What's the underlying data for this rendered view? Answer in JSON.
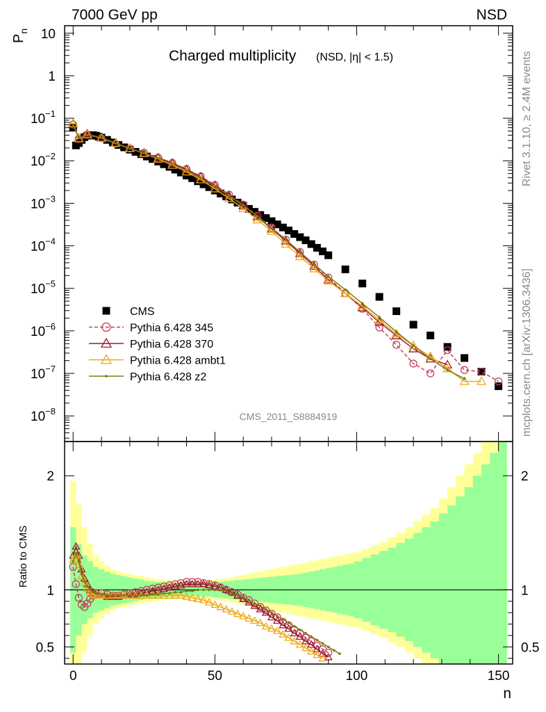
{
  "header": {
    "left": "7000 GeV pp",
    "right": "NSD"
  },
  "side_labels": {
    "rivet": "Rivet 3.1.10, ≥ 2.4M events",
    "mcplots": "mcplots.cern.ch [arXiv:1306.3436]"
  },
  "chart_data": [
    {
      "type": "scatter",
      "panel": "main",
      "title": "Charged multiplicity",
      "title_sub": "(NSD, |η| < 1.5)",
      "ylabel_main": "P",
      "ylabel_sub": "n",
      "yscale": "log",
      "ylim": [
        2.5e-09,
        15
      ],
      "xlim": [
        -3,
        155
      ],
      "analysis_id": "CMS_2011_S8884919",
      "y_ticklabels": [
        {
          "base": "10",
          "exp": "",
          "value": 10
        },
        {
          "base": "1",
          "exp": "",
          "value": 1
        },
        {
          "base": "10",
          "exp": "−1",
          "value": 0.1
        },
        {
          "base": "10",
          "exp": "−2",
          "value": 0.01
        },
        {
          "base": "10",
          "exp": "−3",
          "value": 0.001
        },
        {
          "base": "10",
          "exp": "−4",
          "value": 0.0001
        },
        {
          "base": "10",
          "exp": "−5",
          "value": 1e-05
        },
        {
          "base": "10",
          "exp": "−6",
          "value": 1e-06
        },
        {
          "base": "10",
          "exp": "−7",
          "value": 1e-07
        },
        {
          "base": "10",
          "exp": "−8",
          "value": 1e-08
        }
      ],
      "legend": {
        "placement": "bottom-left",
        "entries": [
          {
            "label": "CMS",
            "color": "#000000",
            "marker": "square"
          },
          {
            "label": "Pythia 6.428 345",
            "color": "#c0405a",
            "marker": "circle-open",
            "dashed": true
          },
          {
            "label": "Pythia 6.428 370",
            "color": "#9b1b30",
            "marker": "triangle-open"
          },
          {
            "label": "Pythia 6.428 ambt1",
            "color": "#f0a818",
            "marker": "triangle-open"
          },
          {
            "label": "Pythia 6.428 z2",
            "color": "#7a7a10",
            "marker": "dot"
          }
        ]
      },
      "series": [
        {
          "name": "CMS",
          "x": [
            0,
            1,
            2,
            3,
            4,
            5,
            6,
            7,
            8,
            9,
            10,
            12,
            14,
            16,
            18,
            20,
            22,
            24,
            26,
            28,
            30,
            32,
            34,
            36,
            38,
            40,
            42,
            44,
            46,
            48,
            50,
            52,
            54,
            56,
            58,
            60,
            62,
            64,
            66,
            68,
            70,
            72,
            74,
            76,
            78,
            80,
            82,
            84,
            86,
            88,
            90,
            96,
            102,
            108,
            114,
            120,
            126,
            132,
            138,
            144,
            150
          ],
          "y": [
            0.06,
            0.023,
            0.026,
            0.031,
            0.036,
            0.039,
            0.04,
            0.04,
            0.039,
            0.037,
            0.035,
            0.031,
            0.027,
            0.0235,
            0.0207,
            0.0183,
            0.0162,
            0.0143,
            0.0126,
            0.011,
            0.0096,
            0.0083,
            0.0072,
            0.0062,
            0.0053,
            0.0045,
            0.0039,
            0.0033,
            0.0028,
            0.0024,
            0.002,
            0.0017,
            0.00145,
            0.00123,
            0.00104,
            0.00088,
            0.00074,
            0.00063,
            0.00053,
            0.00045,
            0.00038,
            0.00032,
            0.00027,
            0.00023,
            0.00019,
            0.00016,
            0.000135,
            0.00011,
            9e-05,
            7.4e-05,
            6e-05,
            2.8e-05,
            1.3e-05,
            6.3e-06,
            2.9e-06,
            1.4e-06,
            7.8e-07,
            4.2e-07,
            2.3e-07,
            1.1e-07,
            5e-08
          ]
        },
        {
          "name": "Pythia 6.428 345",
          "x": [
            0,
            2,
            5,
            10,
            15,
            20,
            25,
            30,
            35,
            40,
            45,
            50,
            55,
            60,
            65,
            70,
            75,
            80,
            85,
            90,
            96,
            102,
            108,
            114,
            120,
            126,
            132,
            138,
            144,
            150
          ],
          "y": [
            0.071,
            0.033,
            0.041,
            0.034,
            0.025,
            0.0195,
            0.0154,
            0.0119,
            0.0089,
            0.0064,
            0.0043,
            0.0027,
            0.0016,
            0.00093,
            0.00051,
            0.00027,
            0.00014,
            7.2e-05,
            3.6e-05,
            1.8e-05,
            7.7e-06,
            3.3e-06,
            1.2e-06,
            4.7e-07,
            1.7e-07,
            1e-07,
            3.5e-07,
            1.2e-07,
            1.1e-07,
            6.5e-08
          ]
        },
        {
          "name": "Pythia 6.428 370",
          "x": [
            0,
            2,
            5,
            10,
            15,
            20,
            25,
            30,
            35,
            40,
            45,
            50,
            55,
            60,
            65,
            70,
            75,
            80,
            85,
            90,
            96,
            102,
            108,
            114,
            120,
            126,
            132
          ],
          "y": [
            0.075,
            0.034,
            0.043,
            0.035,
            0.026,
            0.0198,
            0.0153,
            0.0118,
            0.0088,
            0.0063,
            0.0042,
            0.0026,
            0.0015,
            0.00088,
            0.00048,
            0.00025,
            0.00013,
            6.6e-05,
            3.3e-05,
            1.6e-05,
            7.6e-06,
            3.5e-06,
            1.6e-06,
            7.7e-07,
            3.8e-07,
            2.2e-07,
            1.6e-07
          ]
        },
        {
          "name": "Pythia 6.428 ambt1",
          "x": [
            0,
            2,
            5,
            10,
            15,
            20,
            25,
            30,
            35,
            40,
            45,
            50,
            55,
            60,
            65,
            70,
            75,
            80,
            85,
            90,
            96,
            102,
            108,
            114,
            120,
            126,
            132,
            138,
            144
          ],
          "y": [
            0.075,
            0.033,
            0.041,
            0.034,
            0.026,
            0.0196,
            0.0149,
            0.011,
            0.0079,
            0.0055,
            0.0036,
            0.0022,
            0.0013,
            0.00075,
            0.00041,
            0.00022,
            0.00011,
            5.6e-05,
            2.9e-05,
            1.5e-05,
            7.6e-06,
            3.8e-06,
            1.8e-06,
            8.5e-07,
            4.5e-07,
            2.5e-07,
            1.3e-07,
            6.5e-08,
            6.5e-08
          ]
        },
        {
          "name": "Pythia 6.428 z2",
          "x": [
            0,
            2,
            5,
            10,
            15,
            20,
            25,
            30,
            35,
            40,
            45,
            50,
            55,
            60,
            65,
            70,
            75,
            80,
            85,
            90,
            96,
            102,
            108,
            114,
            120,
            126,
            132,
            138
          ],
          "y": [
            0.072,
            0.034,
            0.04,
            0.035,
            0.026,
            0.0195,
            0.0151,
            0.0114,
            0.0083,
            0.0059,
            0.0039,
            0.0025,
            0.0015,
            0.00088,
            0.00049,
            0.00026,
            0.00014,
            7.1e-05,
            3.7e-05,
            1.9e-05,
            9.3e-06,
            4.4e-06,
            2.1e-06,
            9.5e-07,
            4.5e-07,
            2.2e-07,
            1.2e-07,
            7.5e-08
          ]
        }
      ]
    },
    {
      "type": "line",
      "panel": "ratio",
      "ylabel": "Ratio to CMS",
      "xlabel": "n",
      "ylim": [
        0.35,
        2.3
      ],
      "xlim": [
        -3,
        155
      ],
      "x_ticklabels": [
        "0",
        "50",
        "100",
        "150"
      ],
      "y_ticklabels": [
        "0.5",
        "1",
        "2"
      ],
      "reference_line": 1,
      "band_colors": {
        "stat": "#99ff99",
        "syst": "#ffff99"
      },
      "band_x": [
        -1,
        1,
        3,
        5,
        7,
        9,
        11,
        13,
        15,
        17,
        19,
        21,
        23,
        25,
        27,
        29,
        31,
        33,
        35,
        37,
        39,
        41,
        43,
        45,
        47,
        49,
        51,
        53,
        55,
        57,
        59,
        61,
        63,
        65,
        67,
        69,
        71,
        73,
        75,
        77,
        79,
        81,
        83,
        85,
        87,
        89,
        91,
        93,
        95,
        97,
        99,
        102,
        105,
        108,
        111,
        114,
        117,
        120,
        123,
        126,
        129,
        132,
        135,
        138,
        141,
        144,
        147,
        150,
        153
      ],
      "band_inner": [
        0.55,
        0.4,
        0.3,
        0.25,
        0.2,
        0.18,
        0.16,
        0.14,
        0.13,
        0.12,
        0.11,
        0.1,
        0.09,
        0.08,
        0.075,
        0.07,
        0.065,
        0.06,
        0.058,
        0.056,
        0.055,
        0.055,
        0.056,
        0.058,
        0.06,
        0.065,
        0.07,
        0.075,
        0.08,
        0.085,
        0.09,
        0.095,
        0.1,
        0.105,
        0.11,
        0.115,
        0.12,
        0.125,
        0.13,
        0.135,
        0.14,
        0.15,
        0.16,
        0.17,
        0.18,
        0.19,
        0.2,
        0.21,
        0.22,
        0.23,
        0.25,
        0.28,
        0.31,
        0.34,
        0.37,
        0.41,
        0.45,
        0.5,
        0.55,
        0.6,
        0.67,
        0.74,
        0.82,
        0.9,
        1.0,
        1.1,
        1.2,
        1.3,
        1.3
      ],
      "band_outer": [
        0.95,
        0.75,
        0.55,
        0.4,
        0.3,
        0.25,
        0.21,
        0.18,
        0.16,
        0.15,
        0.14,
        0.13,
        0.12,
        0.11,
        0.1,
        0.095,
        0.09,
        0.085,
        0.08,
        0.078,
        0.076,
        0.076,
        0.078,
        0.08,
        0.085,
        0.09,
        0.095,
        0.1,
        0.11,
        0.12,
        0.13,
        0.14,
        0.15,
        0.16,
        0.17,
        0.18,
        0.19,
        0.2,
        0.21,
        0.22,
        0.23,
        0.24,
        0.25,
        0.26,
        0.27,
        0.28,
        0.29,
        0.3,
        0.31,
        0.32,
        0.33,
        0.36,
        0.39,
        0.42,
        0.46,
        0.5,
        0.55,
        0.6,
        0.66,
        0.72,
        0.8,
        0.9,
        1.0,
        1.1,
        1.2,
        1.4,
        1.6,
        1.6,
        1.6
      ],
      "series": [
        {
          "name": "Pythia 6.428 345",
          "x": [
            0,
            1,
            2,
            3,
            4,
            5,
            6,
            7,
            8,
            10,
            12,
            14,
            16,
            18,
            20,
            22,
            24,
            26,
            28,
            30,
            32,
            34,
            36,
            38,
            40,
            42,
            44,
            46,
            48,
            50,
            52,
            54,
            56,
            58,
            60,
            62,
            64,
            66,
            68,
            70,
            72,
            74,
            76,
            78,
            80,
            82,
            84,
            86,
            88,
            90
          ],
          "y": [
            1.2,
            1.05,
            0.93,
            0.87,
            0.85,
            0.88,
            0.92,
            0.95,
            0.97,
            0.97,
            0.96,
            0.95,
            0.95,
            0.96,
            0.97,
            0.98,
            0.99,
            1.0,
            1.01,
            1.02,
            1.03,
            1.04,
            1.05,
            1.06,
            1.07,
            1.07,
            1.07,
            1.06,
            1.05,
            1.04,
            1.02,
            1.0,
            0.98,
            0.96,
            0.93,
            0.91,
            0.88,
            0.85,
            0.82,
            0.79,
            0.76,
            0.72,
            0.69,
            0.65,
            0.62,
            0.58,
            0.55,
            0.51,
            0.48,
            0.45
          ]
        },
        {
          "name": "Pythia 6.428 370",
          "x": [
            0,
            1,
            2,
            3,
            4,
            5,
            6,
            7,
            8,
            10,
            12,
            14,
            16,
            18,
            20,
            22,
            24,
            26,
            28,
            30,
            32,
            34,
            36,
            38,
            40,
            42,
            44,
            46,
            48,
            50,
            52,
            54,
            56,
            58,
            60,
            62,
            64,
            66,
            68,
            70,
            72,
            74,
            76,
            78,
            80,
            82,
            84,
            86,
            88,
            90
          ],
          "y": [
            1.3,
            1.38,
            1.3,
            1.18,
            1.1,
            1.05,
            1.0,
            0.98,
            0.96,
            0.95,
            0.94,
            0.94,
            0.94,
            0.95,
            0.96,
            0.96,
            0.97,
            0.98,
            0.99,
            1.0,
            1.01,
            1.02,
            1.03,
            1.04,
            1.05,
            1.05,
            1.05,
            1.05,
            1.04,
            1.03,
            1.02,
            1.0,
            0.98,
            0.95,
            0.92,
            0.89,
            0.86,
            0.83,
            0.8,
            0.76,
            0.73,
            0.69,
            0.66,
            0.62,
            0.59,
            0.55,
            0.52,
            0.48,
            0.44,
            0.41
          ]
        },
        {
          "name": "Pythia 6.428 ambt1",
          "x": [
            0,
            1,
            2,
            3,
            4,
            5,
            6,
            7,
            8,
            10,
            12,
            14,
            16,
            18,
            20,
            22,
            24,
            26,
            28,
            30,
            32,
            34,
            36,
            38,
            40,
            42,
            44,
            46,
            48,
            50,
            52,
            54,
            56,
            58,
            60,
            62,
            64,
            66,
            68,
            70,
            72,
            74,
            76,
            78,
            80,
            82,
            84,
            86,
            88
          ],
          "y": [
            1.26,
            1.3,
            1.22,
            1.12,
            1.06,
            1.01,
            0.98,
            0.96,
            0.95,
            0.95,
            0.95,
            0.95,
            0.95,
            0.95,
            0.95,
            0.95,
            0.95,
            0.95,
            0.95,
            0.95,
            0.95,
            0.95,
            0.95,
            0.95,
            0.94,
            0.93,
            0.92,
            0.91,
            0.89,
            0.87,
            0.85,
            0.83,
            0.81,
            0.79,
            0.77,
            0.75,
            0.73,
            0.71,
            0.68,
            0.66,
            0.64,
            0.61,
            0.58,
            0.55,
            0.52,
            0.49,
            0.46,
            0.43,
            0.4
          ]
        },
        {
          "name": "Pythia 6.428 z2",
          "x": [
            0,
            1,
            2,
            3,
            4,
            5,
            6,
            7,
            8,
            10,
            12,
            14,
            16,
            18,
            20,
            22,
            24,
            26,
            28,
            30,
            32,
            34,
            36,
            38,
            40,
            42,
            44,
            46,
            48,
            50,
            52,
            54,
            56,
            58,
            60,
            62,
            64,
            66,
            68,
            70,
            72,
            74,
            76,
            78,
            80,
            82,
            84,
            86,
            88,
            90,
            92,
            94
          ],
          "y": [
            1.25,
            1.32,
            1.25,
            1.14,
            1.07,
            1.03,
            1.0,
            0.98,
            0.97,
            0.96,
            0.95,
            0.95,
            0.95,
            0.95,
            0.95,
            0.95,
            0.95,
            0.95,
            0.96,
            0.96,
            0.97,
            0.97,
            0.98,
            0.98,
            0.99,
            0.99,
            1.0,
            1.0,
            1.0,
            1.0,
            1.0,
            0.99,
            0.97,
            0.95,
            0.93,
            0.91,
            0.88,
            0.86,
            0.83,
            0.8,
            0.77,
            0.74,
            0.71,
            0.68,
            0.65,
            0.62,
            0.59,
            0.56,
            0.53,
            0.5,
            0.47,
            0.44
          ]
        }
      ]
    }
  ]
}
